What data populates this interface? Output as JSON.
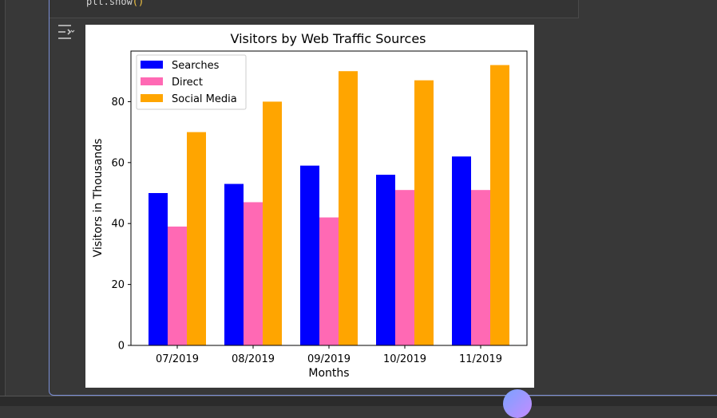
{
  "code": {
    "line_prefix": "plt.show",
    "line_parens": "()"
  },
  "output": {
    "icon": "output-options-icon"
  },
  "chart_data": {
    "type": "bar",
    "title": "Visitors by Web Traffic Sources",
    "xlabel": "Months",
    "ylabel": "Visitors in Thousands",
    "categories": [
      "07/2019",
      "08/2019",
      "09/2019",
      "10/2019",
      "11/2019"
    ],
    "series": [
      {
        "name": "Searches",
        "color": "#0000ff",
        "values": [
          50,
          53,
          59,
          56,
          62
        ]
      },
      {
        "name": "Direct",
        "color": "#ff69b4",
        "values": [
          39,
          47,
          42,
          51,
          51
        ]
      },
      {
        "name": "Social Media",
        "color": "#ffa500",
        "values": [
          70,
          80,
          90,
          87,
          92
        ]
      }
    ],
    "ylim": [
      0,
      96.6
    ],
    "yticks": [
      0,
      20,
      40,
      60,
      80
    ],
    "legend": "top-left",
    "grid": false
  },
  "fab": {
    "icon": "sparkle-icon"
  }
}
